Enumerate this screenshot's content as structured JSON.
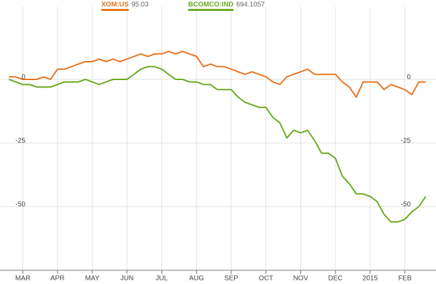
{
  "chart_data": {
    "type": "line",
    "categories": [
      null,
      null,
      "MAR",
      null,
      null,
      null,
      null,
      "APR",
      null,
      null,
      null,
      null,
      "MAY",
      null,
      null,
      null,
      null,
      "JUN",
      null,
      null,
      null,
      null,
      "JUL",
      null,
      null,
      null,
      null,
      "AUG",
      null,
      null,
      null,
      null,
      "SEP",
      null,
      null,
      null,
      null,
      "OCT",
      null,
      null,
      null,
      null,
      "NOV",
      null,
      null,
      null,
      null,
      "DEC",
      null,
      null,
      null,
      null,
      "2015",
      null,
      null,
      null,
      null,
      "FEB",
      null,
      null,
      null
    ],
    "series": [
      {
        "name": "XOM:US",
        "last": "95.03",
        "color": "#e8731f",
        "values": [
          1,
          1,
          0,
          0,
          0,
          1,
          0,
          4,
          4,
          5,
          6,
          7,
          7,
          8,
          7,
          8,
          7,
          8,
          9,
          10,
          9,
          10,
          10,
          11,
          10,
          11,
          10,
          9,
          5,
          6,
          5,
          5,
          4,
          3,
          2,
          3,
          2,
          1,
          -1,
          -2,
          1,
          2,
          3,
          4,
          2,
          2,
          2,
          2,
          -1,
          -3,
          -7,
          -1,
          -1,
          -1,
          -4,
          -2,
          -3,
          -4,
          -6,
          -1,
          -1
        ]
      },
      {
        "name": "BCOMCO:IND",
        "last": "694.1057",
        "color": "#6aaa1e",
        "values": [
          0,
          -1,
          -2,
          -2,
          -3,
          -3,
          -3,
          -2,
          -1,
          -1,
          -1,
          0,
          -1,
          -2,
          -1,
          0,
          0,
          0,
          2,
          4,
          5,
          5,
          4,
          2,
          0,
          0,
          -1,
          -1,
          -2,
          -2,
          -4,
          -4,
          -4,
          -7,
          -9,
          -10,
          -11,
          -11,
          -15,
          -17,
          -23,
          -20,
          -21,
          -20,
          -24,
          -29,
          -29,
          -31,
          -38,
          -41,
          -45,
          -45,
          -46,
          -48,
          -53,
          -56,
          -56,
          -55,
          -52,
          -50,
          -46
        ]
      }
    ],
    "ylim": [
      -75,
      28.5
    ],
    "yticks": [
      -50,
      -25,
      0
    ],
    "grid": true
  }
}
